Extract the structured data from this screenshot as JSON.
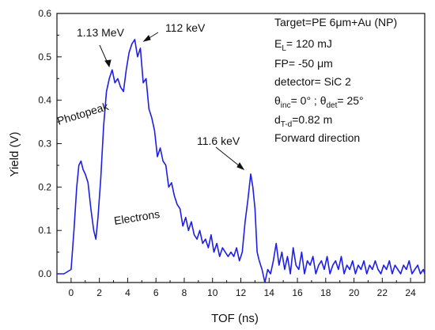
{
  "chart_data": {
    "type": "line",
    "title": "",
    "xlabel": "TOF (ns)",
    "ylabel": "Yield (V)",
    "xlim": [
      -1,
      25
    ],
    "ylim": [
      -0.02,
      0.6
    ],
    "x_ticks": [
      0,
      2,
      4,
      6,
      8,
      10,
      12,
      14,
      16,
      18,
      20,
      22,
      24
    ],
    "y_ticks": [
      0.0,
      0.1,
      0.2,
      0.3,
      0.4,
      0.5,
      0.6
    ],
    "x_tick_labels": [
      "0",
      "2",
      "4",
      "6",
      "8",
      "10",
      "12",
      "14",
      "16",
      "18",
      "20",
      "22",
      "24"
    ],
    "y_tick_labels": [
      "0.0",
      "0.1",
      "0.2",
      "0.3",
      "0.4",
      "0.5",
      "0.6"
    ],
    "grid": false,
    "series": [
      {
        "name": "",
        "color": "#1e1ee6",
        "x": [
          -1.0,
          -0.5,
          0.0,
          0.2,
          0.4,
          0.55,
          0.7,
          0.85,
          1.0,
          1.2,
          1.4,
          1.6,
          1.75,
          1.9,
          2.1,
          2.3,
          2.5,
          2.7,
          2.9,
          3.1,
          3.3,
          3.5,
          3.7,
          3.9,
          4.1,
          4.3,
          4.5,
          4.7,
          4.9,
          5.1,
          5.3,
          5.5,
          5.7,
          5.9,
          6.1,
          6.3,
          6.5,
          6.7,
          6.9,
          7.1,
          7.3,
          7.5,
          7.7,
          7.9,
          8.1,
          8.3,
          8.5,
          8.7,
          8.9,
          9.1,
          9.3,
          9.5,
          9.7,
          9.9,
          10.1,
          10.3,
          10.5,
          10.7,
          10.9,
          11.1,
          11.3,
          11.5,
          11.7,
          11.9,
          12.1,
          12.3,
          12.5,
          12.7,
          12.85,
          13.0,
          13.15,
          13.3,
          13.5,
          13.7,
          13.9,
          14.1,
          14.3,
          14.5,
          14.7,
          14.9,
          15.1,
          15.3,
          15.5,
          15.7,
          15.9,
          16.1,
          16.3,
          16.5,
          16.7,
          16.9,
          17.1,
          17.3,
          17.5,
          17.7,
          17.9,
          18.1,
          18.3,
          18.5,
          18.7,
          18.9,
          19.1,
          19.3,
          19.5,
          19.7,
          19.9,
          20.1,
          20.3,
          20.5,
          20.7,
          20.9,
          21.1,
          21.3,
          21.5,
          21.7,
          21.9,
          22.1,
          22.3,
          22.5,
          22.7,
          22.9,
          23.1,
          23.3,
          23.5,
          23.7,
          23.9,
          24.1,
          24.3,
          24.5,
          24.7,
          24.9,
          25.0
        ],
        "values": [
          0.0,
          0.0,
          0.01,
          0.1,
          0.2,
          0.25,
          0.26,
          0.24,
          0.23,
          0.21,
          0.15,
          0.1,
          0.08,
          0.13,
          0.22,
          0.34,
          0.42,
          0.45,
          0.47,
          0.44,
          0.45,
          0.43,
          0.42,
          0.47,
          0.51,
          0.53,
          0.54,
          0.5,
          0.52,
          0.44,
          0.45,
          0.38,
          0.36,
          0.33,
          0.27,
          0.29,
          0.26,
          0.25,
          0.2,
          0.21,
          0.18,
          0.16,
          0.15,
          0.11,
          0.13,
          0.1,
          0.12,
          0.09,
          0.08,
          0.1,
          0.07,
          0.08,
          0.06,
          0.09,
          0.05,
          0.07,
          0.04,
          0.06,
          0.05,
          0.04,
          0.05,
          0.04,
          0.06,
          0.03,
          0.05,
          0.12,
          0.17,
          0.23,
          0.2,
          0.15,
          0.05,
          0.03,
          0.01,
          -0.02,
          0.01,
          0.0,
          0.03,
          0.07,
          0.02,
          0.05,
          0.01,
          0.04,
          0.0,
          0.06,
          0.02,
          0.01,
          0.05,
          0.0,
          0.03,
          0.02,
          0.04,
          0.0,
          0.02,
          0.03,
          0.01,
          0.04,
          0.0,
          0.02,
          0.03,
          0.01,
          0.04,
          0.0,
          0.02,
          0.01,
          0.03,
          0.0,
          0.02,
          0.01,
          0.03,
          0.0,
          0.02,
          0.01,
          0.03,
          0.01,
          0.0,
          0.02,
          0.01,
          0.03,
          0.0,
          0.02,
          0.01,
          0.0,
          0.02,
          0.01,
          0.03,
          0.0,
          0.01,
          0.02,
          0.0,
          0.01,
          0.0
        ]
      }
    ],
    "annotations": [
      {
        "text": "1.13 MeV",
        "arrow_to": [
          2.6,
          0.46
        ]
      },
      {
        "text": "112 keV",
        "arrow_to": [
          4.8,
          0.53
        ]
      },
      {
        "text": "11.6 keV",
        "arrow_to": [
          12.6,
          0.22
        ]
      },
      {
        "text": "Photopeak"
      },
      {
        "text": "Electrons"
      }
    ],
    "info_box": {
      "target": "Target=PE 6μm+Au (NP)",
      "energy_main": "E",
      "energy_sub": "L",
      "energy_rest": "= 120 mJ",
      "fp": "FP= -50 μm",
      "detector": "detector= SiC 2",
      "theta_main": "θ",
      "theta_inc_sub": "inc",
      "theta_mid": "= 0° ; θ",
      "theta_det_sub": "det",
      "theta_end": "= 25°",
      "dist_main": "d",
      "dist_sub": "T-d",
      "dist_rest": "=0.82 m",
      "direction": "Forward direction"
    }
  }
}
